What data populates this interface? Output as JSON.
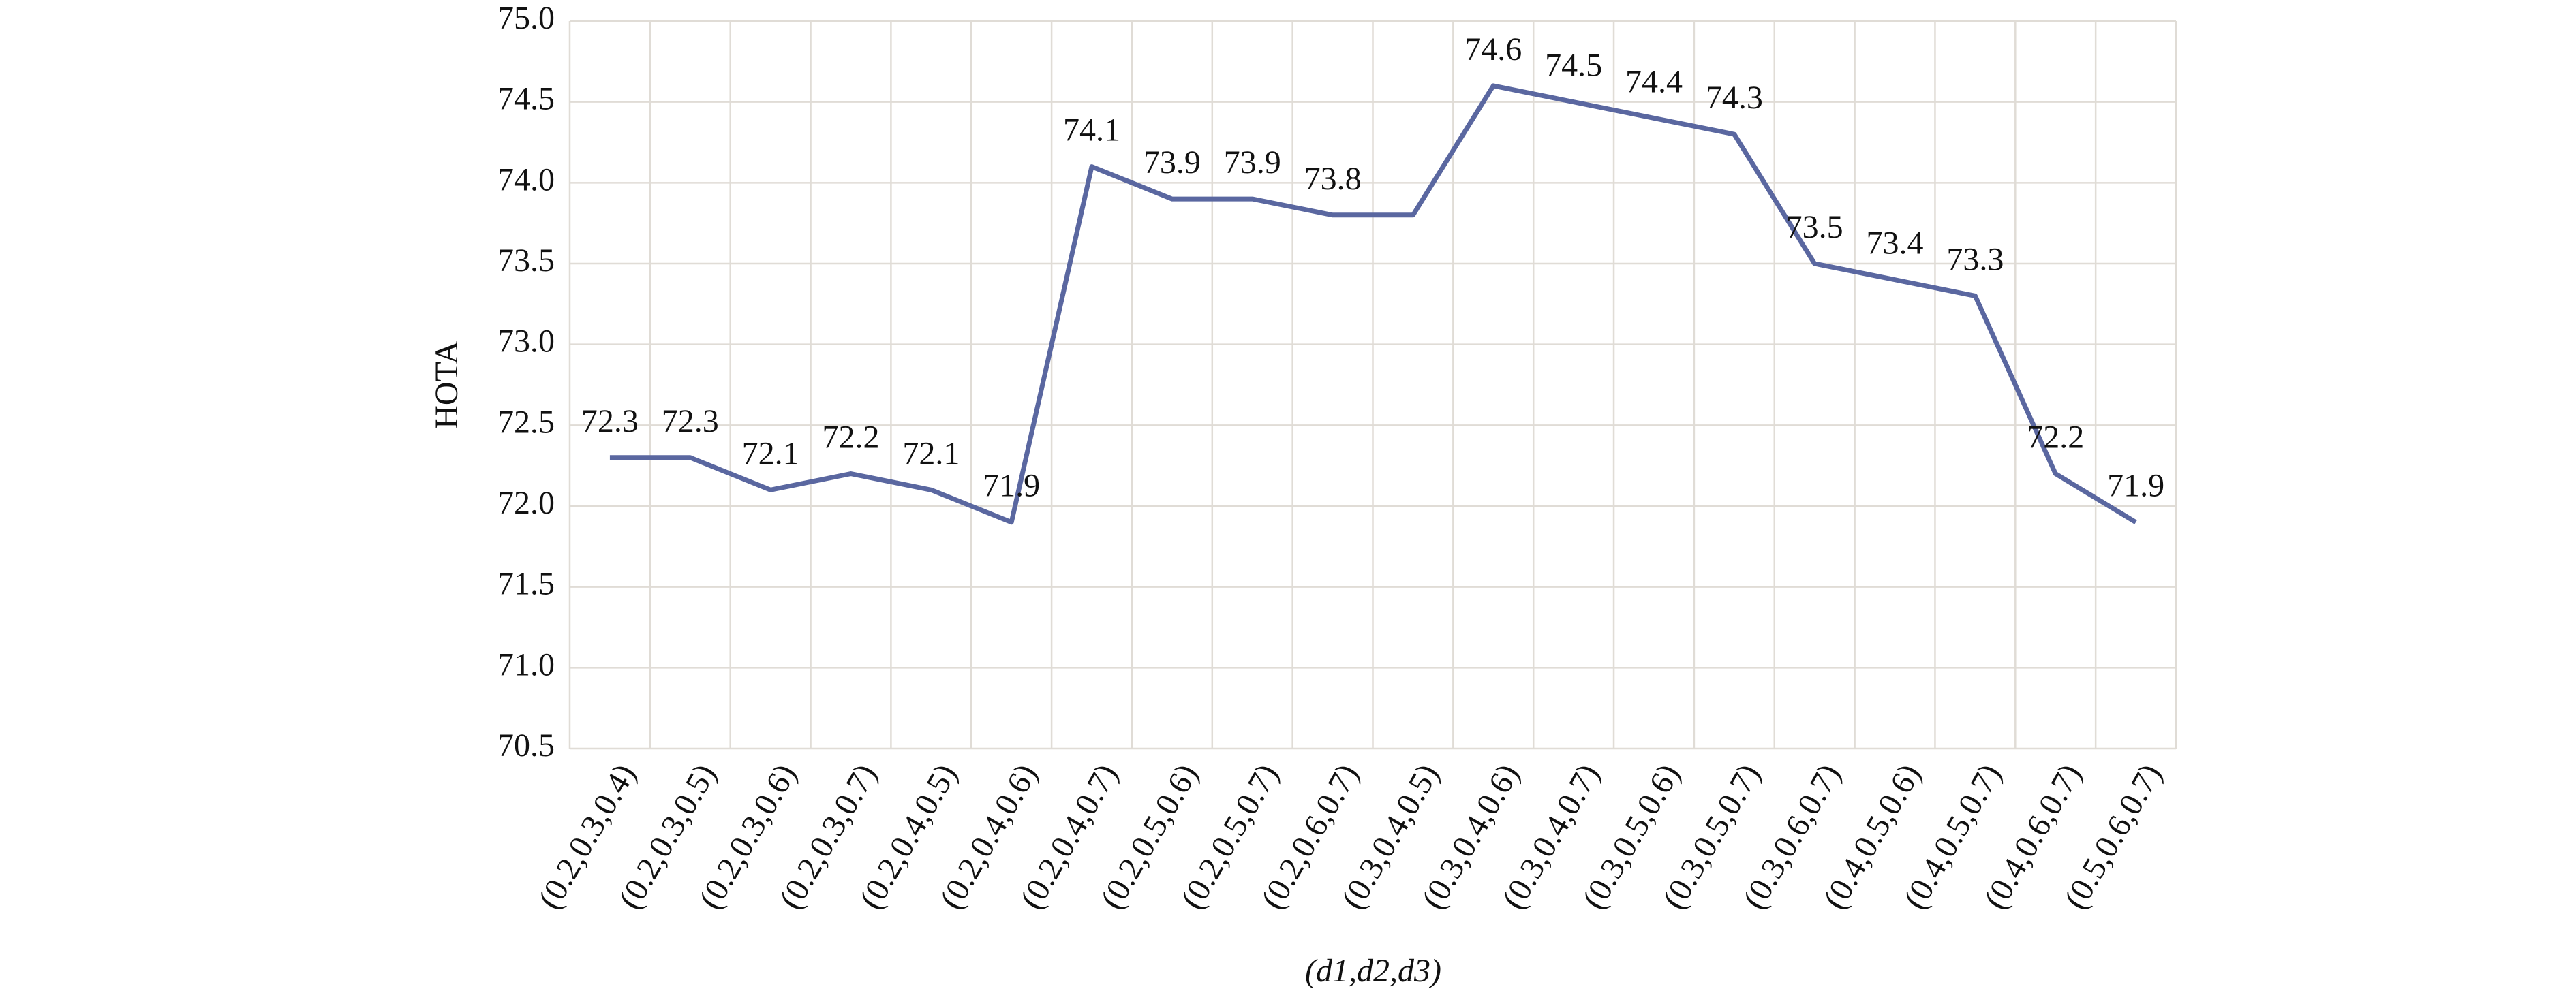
{
  "chart_data": {
    "type": "line",
    "y_label": "HOTA",
    "x_label": "(d1,d2,d3)",
    "categories": [
      "(0.2,0.3,0.4)",
      "(0.2,0.3,0.5)",
      "(0.2,0.3,0.6)",
      "(0.2,0.3,0.7)",
      "(0.2,0.4,0.5)",
      "(0.2,0.4,0.6)",
      "(0.2,0.4,0.7)",
      "(0.2,0.5,0.6)",
      "(0.2,0.5,0.7)",
      "(0.2,0.6,0.7)",
      "(0.3,0.4,0.5)",
      "(0.3,0.4,0.6)",
      "(0.3,0.4,0.7)",
      "(0.3,0.5,0.6)",
      "(0.3,0.5,0.7)",
      "(0.3,0.6,0.7)",
      "(0.4,0.5,0.6)",
      "(0.4,0.5,0.7)",
      "(0.4,0.6,0.7)",
      "(0.5,0.6,0.7)"
    ],
    "values": [
      72.3,
      72.3,
      72.1,
      72.2,
      72.1,
      71.9,
      74.1,
      73.9,
      73.9,
      73.8,
      73.8,
      74.6,
      74.5,
      74.4,
      74.3,
      73.5,
      73.4,
      73.3,
      72.2,
      71.9
    ],
    "value_labels": [
      "72.3",
      "72.3",
      "72.1",
      "72.2",
      "72.1",
      "71.9",
      "74.1",
      "73.9",
      "73.9",
      "73.8",
      null,
      "74.6",
      "74.5",
      "74.4",
      "74.3",
      "73.5",
      "73.4",
      "73.3",
      "72.2",
      "71.9"
    ],
    "color": "#5a67a0",
    "ylim": [
      70.5,
      75.0
    ],
    "yticks": [
      70.5,
      {
        "value": 71.0,
        "label": "71.0"
      },
      71.5,
      {
        "value": 72.0,
        "label": "72.0"
      },
      72.5,
      {
        "value": 73.0,
        "label": "73.0"
      },
      73.5,
      {
        "value": 74.0,
        "label": "74.0"
      },
      74.5,
      {
        "value": 75.0,
        "label": "75.0"
      }
    ],
    "grid": true
  }
}
